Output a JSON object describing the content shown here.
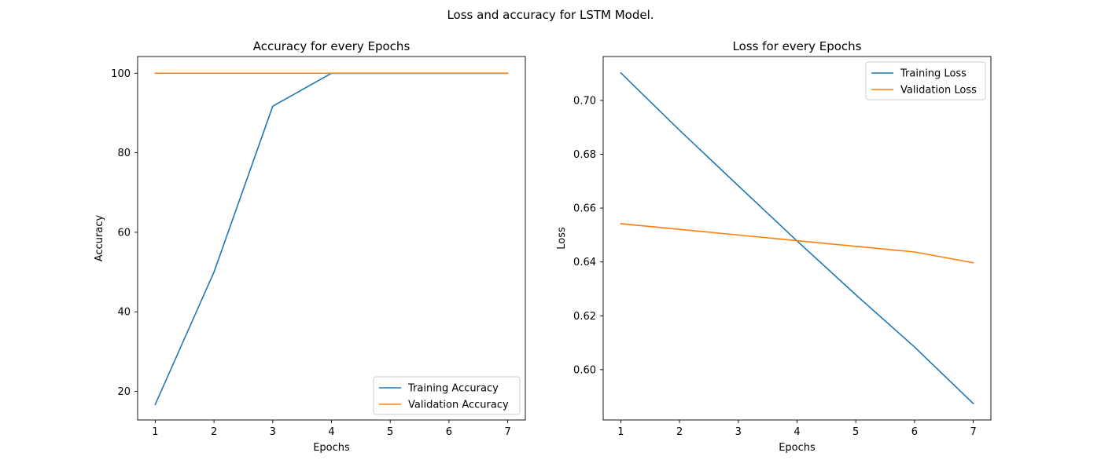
{
  "figure": {
    "suptitle": "Loss and accuracy for LSTM Model."
  },
  "chart_data": [
    {
      "type": "line",
      "title": "Accuracy for every Epochs",
      "xlabel": "Epochs",
      "ylabel": "Accuracy",
      "x": [
        1,
        2,
        3,
        4,
        5,
        6,
        7
      ],
      "xticks": [
        "1",
        "2",
        "3",
        "4",
        "5",
        "6",
        "7"
      ],
      "xlim": [
        0.7,
        7.3
      ],
      "ylim": [
        12.8,
        104.2
      ],
      "yticks": [
        "20",
        "40",
        "60",
        "80",
        "100"
      ],
      "legend_position": "lower-right",
      "grid": false,
      "series": [
        {
          "name": "Training Accuracy",
          "color": "#1f77b4",
          "values": [
            16.7,
            50.0,
            91.7,
            100.0,
            100.0,
            100.0,
            100.0
          ]
        },
        {
          "name": "Validation Accuracy",
          "color": "#ff7f0e",
          "values": [
            100.0,
            100.0,
            100.0,
            100.0,
            100.0,
            100.0,
            100.0
          ]
        }
      ]
    },
    {
      "type": "line",
      "title": "Loss for every Epochs",
      "xlabel": "Epochs",
      "ylabel": "Loss",
      "x": [
        1,
        2,
        3,
        4,
        5,
        6,
        7
      ],
      "xticks": [
        "1",
        "2",
        "3",
        "4",
        "5",
        "6",
        "7"
      ],
      "xlim": [
        0.7,
        7.3
      ],
      "ylim": [
        0.5813,
        0.7163
      ],
      "yticks": [
        "0.60",
        "0.62",
        "0.64",
        "0.66",
        "0.68",
        "0.70"
      ],
      "legend_position": "upper-right",
      "grid": false,
      "series": [
        {
          "name": "Training Loss",
          "color": "#1f77b4",
          "values": [
            0.7102,
            0.6889,
            0.6683,
            0.6478,
            0.6278,
            0.6084,
            0.5874
          ]
        },
        {
          "name": "Validation Loss",
          "color": "#ff7f0e",
          "values": [
            0.6542,
            0.6521,
            0.65,
            0.6479,
            0.6458,
            0.6437,
            0.6397
          ]
        }
      ]
    }
  ]
}
